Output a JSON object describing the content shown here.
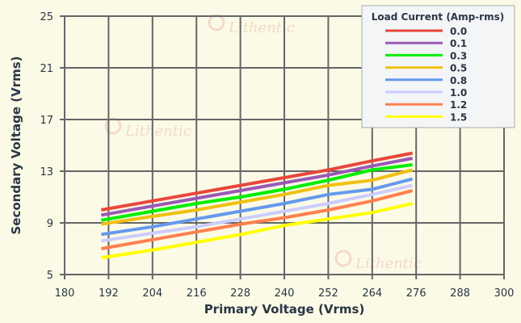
{
  "chart_data": {
    "type": "line",
    "xlabel": "Primary Voltage (Vrms)",
    "ylabel": "Secondary Voltage (Vrms)",
    "xlim": [
      180,
      300
    ],
    "ylim": [
      5,
      25
    ],
    "xticks": [
      180,
      192,
      204,
      216,
      228,
      240,
      252,
      264,
      276,
      288,
      300
    ],
    "yticks": [
      5,
      9,
      13,
      17,
      21,
      25
    ],
    "grid": true,
    "legend": {
      "title": "Load Current (Amp-rms)",
      "placement": "top-right"
    },
    "x": [
      190,
      204,
      216,
      228,
      240,
      252,
      264,
      275
    ],
    "series": [
      {
        "name": "0.0",
        "color": "#e8473c",
        "values": [
          10.0,
          10.7,
          11.3,
          11.9,
          12.5,
          13.1,
          13.8,
          14.4
        ]
      },
      {
        "name": "0.1",
        "color": "#9b59b6",
        "values": [
          9.6,
          10.3,
          10.9,
          11.5,
          12.1,
          12.7,
          13.4,
          14.0
        ]
      },
      {
        "name": "0.3",
        "color": "#00ee00",
        "values": [
          9.2,
          9.9,
          10.5,
          11.0,
          11.6,
          12.3,
          13.1,
          13.5
        ]
      },
      {
        "name": "0.5",
        "color": "#f0c010",
        "values": [
          8.9,
          9.5,
          10.0,
          10.6,
          11.2,
          11.9,
          12.3,
          13.1
        ]
      },
      {
        "name": "0.8",
        "color": "#6699ee",
        "values": [
          8.1,
          8.7,
          9.3,
          9.9,
          10.5,
          11.2,
          11.6,
          12.4
        ]
      },
      {
        "name": "1.0",
        "color": "#ccccff",
        "values": [
          7.6,
          8.2,
          8.7,
          9.3,
          9.9,
          10.5,
          11.2,
          11.9
        ]
      },
      {
        "name": "1.2",
        "color": "#ff7f50",
        "values": [
          7.0,
          7.7,
          8.3,
          8.9,
          9.4,
          10.0,
          10.7,
          11.5
        ]
      },
      {
        "name": "1.5",
        "color": "#ffff00",
        "values": [
          6.3,
          6.9,
          7.5,
          8.1,
          8.8,
          9.3,
          9.8,
          10.5
        ]
      }
    ]
  },
  "watermark": "Lithentic"
}
